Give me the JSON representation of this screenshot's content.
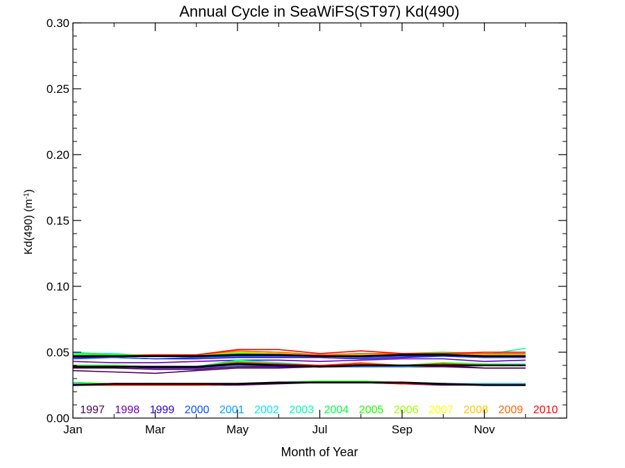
{
  "chart_data": {
    "type": "line",
    "title": "Annual Cycle in SeaWiFS(ST97) Kd(490)",
    "xlabel": "Month of Year",
    "ylabel_main": "Kd(490) (m",
    "ylabel_sup": "-1",
    "ylabel_end": ")",
    "ylim": [
      0.0,
      0.3
    ],
    "xlim": [
      1,
      13
    ],
    "x_ticks": [
      {
        "value": 1,
        "label": "Jan"
      },
      {
        "value": 3,
        "label": "Mar"
      },
      {
        "value": 5,
        "label": "May"
      },
      {
        "value": 7,
        "label": "Jul"
      },
      {
        "value": 9,
        "label": "Sep"
      },
      {
        "value": 11,
        "label": "Nov"
      }
    ],
    "y_ticks": [
      {
        "value": 0.0,
        "label": "0.00"
      },
      {
        "value": 0.05,
        "label": "0.05"
      },
      {
        "value": 0.1,
        "label": "0.10"
      },
      {
        "value": 0.15,
        "label": "0.15"
      },
      {
        "value": 0.2,
        "label": "0.20"
      },
      {
        "value": 0.25,
        "label": "0.25"
      },
      {
        "value": 0.3,
        "label": "0.30"
      }
    ],
    "grid": false,
    "legend_position": "bottom",
    "legend": [
      {
        "label": "1997",
        "color": "#4b0055"
      },
      {
        "label": "1998",
        "color": "#6a00a8"
      },
      {
        "label": "1999",
        "color": "#2a00d5"
      },
      {
        "label": "2000",
        "color": "#0050ff"
      },
      {
        "label": "2001",
        "color": "#00a0ff"
      },
      {
        "label": "2002",
        "color": "#00e6ff"
      },
      {
        "label": "2003",
        "color": "#00ffb4"
      },
      {
        "label": "2004",
        "color": "#00ff46"
      },
      {
        "label": "2005",
        "color": "#1eff00"
      },
      {
        "label": "2006",
        "color": "#96ff00"
      },
      {
        "label": "2007",
        "color": "#ffff00"
      },
      {
        "label": "2008",
        "color": "#ffc300"
      },
      {
        "label": "2009",
        "color": "#ff6400"
      },
      {
        "label": "2010",
        "color": "#ff0000"
      }
    ],
    "x": [
      1,
      2,
      3,
      4,
      5,
      6,
      7,
      8,
      9,
      10,
      11,
      12
    ],
    "series": [
      {
        "color": "#4b0055",
        "group": 1,
        "values": [
          0.036,
          0.035,
          0.034,
          0.036,
          0.038,
          0.038,
          0.039,
          0.039,
          0.039,
          0.039,
          0.038,
          0.038
        ]
      },
      {
        "color": "#6a00a8",
        "group": 1,
        "values": [
          0.043,
          0.042,
          0.042,
          0.043,
          0.044,
          0.044,
          0.043,
          0.044,
          0.045,
          0.045,
          0.043,
          0.044
        ]
      },
      {
        "color": "#2a00d5",
        "group": 1,
        "values": [
          0.046,
          0.046,
          0.045,
          0.045,
          0.046,
          0.046,
          0.046,
          0.045,
          0.046,
          0.047,
          0.046,
          0.046
        ]
      },
      {
        "color": "#0050ff",
        "group": 1,
        "values": [
          0.045,
          0.046,
          0.045,
          0.046,
          0.047,
          0.047,
          0.047,
          0.046,
          0.047,
          0.047,
          0.046,
          0.046
        ]
      },
      {
        "color": "#00a0ff",
        "group": 1,
        "values": [
          0.048,
          0.047,
          0.047,
          0.047,
          0.048,
          0.048,
          0.048,
          0.048,
          0.048,
          0.048,
          0.047,
          0.047
        ]
      },
      {
        "color": "#00e6ff",
        "group": 1,
        "values": [
          0.049,
          0.048,
          0.048,
          0.048,
          0.049,
          0.049,
          0.048,
          0.048,
          0.049,
          0.049,
          0.049,
          0.049
        ]
      },
      {
        "color": "#00ffb4",
        "group": 1,
        "values": [
          0.049,
          0.049,
          0.047,
          0.047,
          0.051,
          0.05,
          0.048,
          0.049,
          0.049,
          0.049,
          0.048,
          0.053
        ]
      },
      {
        "color": "#00ff46",
        "group": 1,
        "values": [
          0.05,
          0.048,
          0.048,
          0.048,
          0.05,
          0.049,
          0.048,
          0.048,
          0.049,
          0.05,
          0.049,
          0.048
        ]
      },
      {
        "color": "#1eff00",
        "group": 1,
        "values": [
          0.048,
          0.048,
          0.048,
          0.047,
          0.049,
          0.049,
          0.048,
          0.048,
          0.048,
          0.049,
          0.048,
          0.048
        ]
      },
      {
        "color": "#96ff00",
        "group": 1,
        "values": [
          0.048,
          0.047,
          0.047,
          0.047,
          0.048,
          0.048,
          0.048,
          0.048,
          0.048,
          0.048,
          0.047,
          0.047
        ]
      },
      {
        "color": "#ffff00",
        "group": 1,
        "values": [
          0.047,
          0.047,
          0.047,
          0.047,
          0.048,
          0.048,
          0.047,
          0.047,
          0.048,
          0.048,
          0.047,
          0.047
        ]
      },
      {
        "color": "#ffc300",
        "group": 1,
        "values": [
          0.047,
          0.047,
          0.048,
          0.048,
          0.05,
          0.049,
          0.048,
          0.048,
          0.049,
          0.049,
          0.048,
          0.048
        ]
      },
      {
        "color": "#ff6400",
        "group": 1,
        "values": [
          0.047,
          0.047,
          0.048,
          0.048,
          0.051,
          0.05,
          0.048,
          0.049,
          0.049,
          0.049,
          0.049,
          0.049
        ]
      },
      {
        "color": "#ff0000",
        "group": 1,
        "values": [
          0.047,
          0.047,
          0.048,
          0.048,
          0.052,
          0.052,
          0.049,
          0.051,
          0.049,
          0.049,
          0.05,
          0.05
        ]
      },
      {
        "color": "#000000",
        "group": 1,
        "values": [
          0.047,
          0.047,
          0.047,
          0.047,
          0.048,
          0.048,
          0.047,
          0.047,
          0.048,
          0.048,
          0.047,
          0.047
        ]
      },
      {
        "color": "#4b0055",
        "group": 2,
        "values": [
          0.038,
          0.038,
          0.037,
          0.037,
          0.039,
          0.039,
          0.039,
          0.039,
          0.039,
          0.04,
          0.038,
          0.038
        ]
      },
      {
        "color": "#2a00d5",
        "group": 2,
        "values": [
          0.039,
          0.039,
          0.038,
          0.038,
          0.04,
          0.039,
          0.039,
          0.039,
          0.04,
          0.04,
          0.04,
          0.04
        ]
      },
      {
        "color": "#00a0ff",
        "group": 2,
        "values": [
          0.039,
          0.039,
          0.039,
          0.039,
          0.04,
          0.04,
          0.039,
          0.039,
          0.039,
          0.04,
          0.04,
          0.04
        ]
      },
      {
        "color": "#00ffb4",
        "group": 2,
        "values": [
          0.04,
          0.04,
          0.039,
          0.039,
          0.044,
          0.042,
          0.04,
          0.041,
          0.04,
          0.041,
          0.041,
          0.041
        ]
      },
      {
        "color": "#1eff00",
        "group": 2,
        "values": [
          0.04,
          0.04,
          0.039,
          0.039,
          0.043,
          0.041,
          0.04,
          0.04,
          0.04,
          0.042,
          0.041,
          0.04
        ]
      },
      {
        "color": "#ffff00",
        "group": 2,
        "values": [
          0.039,
          0.039,
          0.039,
          0.039,
          0.041,
          0.04,
          0.039,
          0.04,
          0.04,
          0.04,
          0.04,
          0.04
        ]
      },
      {
        "color": "#ff6400",
        "group": 2,
        "values": [
          0.039,
          0.039,
          0.039,
          0.039,
          0.042,
          0.041,
          0.04,
          0.042,
          0.04,
          0.041,
          0.04,
          0.04
        ]
      },
      {
        "color": "#ff0000",
        "group": 2,
        "values": [
          0.039,
          0.039,
          0.039,
          0.039,
          0.042,
          0.041,
          0.04,
          0.041,
          0.04,
          0.041,
          0.04,
          0.04
        ]
      },
      {
        "color": "#000000",
        "group": 2,
        "values": [
          0.039,
          0.039,
          0.039,
          0.039,
          0.041,
          0.04,
          0.039,
          0.04,
          0.04,
          0.04,
          0.04,
          0.04
        ]
      },
      {
        "color": "#4b0055",
        "group": 3,
        "values": [
          0.025,
          0.025,
          0.025,
          0.025,
          0.025,
          0.026,
          0.027,
          0.027,
          0.026,
          0.025,
          0.025,
          0.025
        ]
      },
      {
        "color": "#2a00d5",
        "group": 3,
        "values": [
          0.025,
          0.026,
          0.026,
          0.026,
          0.026,
          0.027,
          0.027,
          0.027,
          0.027,
          0.026,
          0.026,
          0.026
        ]
      },
      {
        "color": "#00a0ff",
        "group": 3,
        "values": [
          0.026,
          0.026,
          0.026,
          0.025,
          0.026,
          0.027,
          0.028,
          0.028,
          0.027,
          0.026,
          0.026,
          0.026
        ]
      },
      {
        "color": "#00ffb4",
        "group": 3,
        "values": [
          0.027,
          0.026,
          0.026,
          0.026,
          0.026,
          0.027,
          0.028,
          0.028,
          0.027,
          0.026,
          0.025,
          0.025
        ]
      },
      {
        "color": "#1eff00",
        "group": 3,
        "values": [
          0.027,
          0.026,
          0.026,
          0.026,
          0.026,
          0.027,
          0.028,
          0.028,
          0.027,
          0.026,
          0.025,
          0.025
        ]
      },
      {
        "color": "#ffff00",
        "group": 3,
        "values": [
          0.025,
          0.025,
          0.025,
          0.025,
          0.026,
          0.027,
          0.027,
          0.027,
          0.026,
          0.026,
          0.025,
          0.025
        ]
      },
      {
        "color": "#ff6400",
        "group": 3,
        "values": [
          0.025,
          0.025,
          0.025,
          0.025,
          0.026,
          0.027,
          0.027,
          0.027,
          0.026,
          0.026,
          0.025,
          0.025
        ]
      },
      {
        "color": "#ff0000",
        "group": 3,
        "values": [
          0.025,
          0.025,
          0.025,
          0.025,
          0.026,
          0.027,
          0.027,
          0.027,
          0.026,
          0.026,
          0.025,
          0.025
        ]
      },
      {
        "color": "#000000",
        "group": 3,
        "values": [
          0.025,
          0.026,
          0.026,
          0.026,
          0.026,
          0.027,
          0.027,
          0.027,
          0.027,
          0.026,
          0.025,
          0.025
        ]
      }
    ]
  }
}
